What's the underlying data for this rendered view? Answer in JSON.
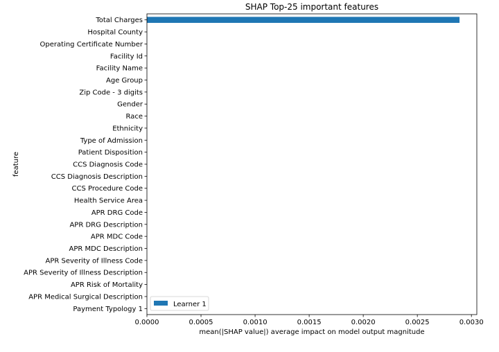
{
  "chart_data": {
    "type": "bar",
    "orientation": "horizontal",
    "title": "SHAP Top-25 important features",
    "xlabel": "mean(|SHAP value|) average impact on model output magnitude",
    "ylabel": "feature",
    "xlim": [
      0,
      0.00305
    ],
    "x_ticks": [
      "0.0000",
      "0.0005",
      "0.0010",
      "0.0015",
      "0.0020",
      "0.0025",
      "0.0030"
    ],
    "x_tick_values": [
      0,
      0.0005,
      0.001,
      0.0015,
      0.002,
      0.0025,
      0.003
    ],
    "categories": [
      "Total Charges",
      "Hospital County",
      "Operating Certificate Number",
      "Facility Id",
      "Facility Name",
      "Age Group",
      "Zip Code - 3 digits",
      "Gender",
      "Race",
      "Ethnicity",
      "Type of Admission",
      "Patient Disposition",
      "CCS Diagnosis Code",
      "CCS Diagnosis Description",
      "CCS Procedure Code",
      "Health Service Area",
      "APR DRG Code",
      "APR DRG Description",
      "APR MDC Code",
      "APR MDC Description",
      "APR Severity of Illness Code",
      "APR Severity of Illness Description",
      "APR Risk of Mortality",
      "APR Medical Surgical Description",
      "Payment Typology 1"
    ],
    "series": [
      {
        "name": "Learner 1",
        "color": "#1f77b4",
        "values": [
          0.00289,
          0,
          0,
          0,
          0,
          0,
          0,
          0,
          0,
          0,
          0,
          0,
          0,
          0,
          0,
          0,
          0,
          0,
          0,
          0,
          0,
          0,
          0,
          0,
          0
        ]
      }
    ],
    "grid": false,
    "legend_position": "lower-left"
  }
}
